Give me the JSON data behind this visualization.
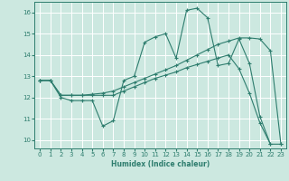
{
  "xlabel": "Humidex (Indice chaleur)",
  "xlim": [
    -0.5,
    23.5
  ],
  "ylim": [
    9.6,
    16.5
  ],
  "yticks": [
    10,
    11,
    12,
    13,
    14,
    15,
    16
  ],
  "xticks": [
    0,
    1,
    2,
    3,
    4,
    5,
    6,
    7,
    8,
    9,
    10,
    11,
    12,
    13,
    14,
    15,
    16,
    17,
    18,
    19,
    20,
    21,
    22,
    23
  ],
  "background_color": "#cce8e0",
  "grid_color": "#ffffff",
  "line_color": "#2e7d6e",
  "line1_x": [
    0,
    1,
    2,
    3,
    4,
    5,
    6,
    7,
    8,
    9,
    10,
    11,
    12,
    13,
    14,
    15,
    16,
    17,
    18,
    19,
    20,
    21,
    22
  ],
  "line1_y": [
    12.8,
    12.8,
    12.0,
    11.85,
    11.85,
    11.85,
    10.65,
    10.9,
    12.8,
    13.0,
    14.6,
    14.85,
    15.0,
    13.85,
    16.1,
    16.2,
    15.75,
    13.5,
    13.6,
    14.75,
    13.6,
    11.1,
    9.8
  ],
  "line2_x": [
    0,
    1,
    2,
    3,
    4,
    5,
    6,
    7,
    8,
    9,
    10,
    11,
    12,
    13,
    14,
    15,
    16,
    17,
    18,
    19,
    20,
    21,
    22,
    23
  ],
  "line2_y": [
    12.8,
    12.8,
    12.1,
    12.1,
    12.1,
    12.15,
    12.2,
    12.3,
    12.5,
    12.7,
    12.9,
    13.1,
    13.3,
    13.5,
    13.75,
    14.0,
    14.25,
    14.5,
    14.65,
    14.8,
    14.8,
    14.75,
    14.2,
    9.8
  ],
  "line3_x": [
    0,
    1,
    2,
    3,
    4,
    5,
    6,
    7,
    8,
    9,
    10,
    11,
    12,
    13,
    14,
    15,
    16,
    17,
    18,
    19,
    20,
    21,
    22,
    23
  ],
  "line3_y": [
    12.8,
    12.8,
    12.1,
    12.1,
    12.1,
    12.1,
    12.1,
    12.1,
    12.3,
    12.5,
    12.7,
    12.9,
    13.05,
    13.2,
    13.4,
    13.55,
    13.7,
    13.85,
    14.0,
    13.35,
    12.2,
    10.8,
    9.8,
    9.8
  ]
}
